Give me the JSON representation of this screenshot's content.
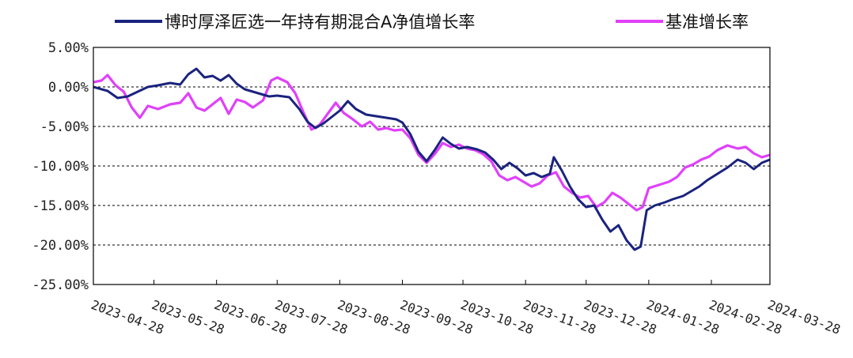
{
  "chart_data": {
    "type": "line",
    "title": "",
    "xlabel": "",
    "ylabel": "",
    "ylim": [
      -25,
      5
    ],
    "grid": "horizontal dashed",
    "legend_position": "top",
    "y_ticks": [
      "5.00%",
      "0.00%",
      "-5.00%",
      "-10.00%",
      "-15.00%",
      "-20.00%",
      "-25.00%"
    ],
    "y_tick_values": [
      5,
      0,
      -5,
      -10,
      -15,
      -20,
      -25
    ],
    "x_ticks": [
      "2023-04-28",
      "2023-05-28",
      "2023-06-28",
      "2023-07-28",
      "2023-08-28",
      "2023-09-28",
      "2023-10-28",
      "2023-11-28",
      "2023-12-28",
      "2024-01-28",
      "2024-02-28",
      "2024-03-28"
    ],
    "series": [
      {
        "name": "博时厚泽匠选一年持有期混合A净值增长率",
        "color": "#1a237e",
        "points": [
          [
            "2023-04-28",
            0.0
          ],
          [
            "2023-05-05",
            -0.5
          ],
          [
            "2023-05-10",
            -1.4
          ],
          [
            "2023-05-15",
            -1.2
          ],
          [
            "2023-05-20",
            -0.6
          ],
          [
            "2023-05-25",
            0.0
          ],
          [
            "2023-05-30",
            0.2
          ],
          [
            "2023-06-05",
            0.5
          ],
          [
            "2023-06-10",
            0.3
          ],
          [
            "2023-06-14",
            1.6
          ],
          [
            "2023-06-18",
            2.3
          ],
          [
            "2023-06-22",
            1.2
          ],
          [
            "2023-06-26",
            1.4
          ],
          [
            "2023-06-30",
            0.8
          ],
          [
            "2023-07-04",
            1.5
          ],
          [
            "2023-07-08",
            0.4
          ],
          [
            "2023-07-12",
            -0.3
          ],
          [
            "2023-07-16",
            -0.6
          ],
          [
            "2023-07-20",
            -0.9
          ],
          [
            "2023-07-24",
            -1.2
          ],
          [
            "2023-07-28",
            -1.1
          ],
          [
            "2023-08-03",
            -1.3
          ],
          [
            "2023-08-08",
            -2.8
          ],
          [
            "2023-08-12",
            -4.4
          ],
          [
            "2023-08-16",
            -5.2
          ],
          [
            "2023-08-20",
            -4.6
          ],
          [
            "2023-08-24",
            -3.8
          ],
          [
            "2023-08-28",
            -3.0
          ],
          [
            "2023-09-01",
            -1.8
          ],
          [
            "2023-09-05",
            -2.8
          ],
          [
            "2023-09-10",
            -3.5
          ],
          [
            "2023-09-15",
            -3.7
          ],
          [
            "2023-09-20",
            -3.9
          ],
          [
            "2023-09-25",
            -4.1
          ],
          [
            "2023-09-28",
            -4.5
          ],
          [
            "2023-10-02",
            -6.0
          ],
          [
            "2023-10-06",
            -8.2
          ],
          [
            "2023-10-10",
            -9.4
          ],
          [
            "2023-10-14",
            -8.0
          ],
          [
            "2023-10-18",
            -6.4
          ],
          [
            "2023-10-22",
            -7.2
          ],
          [
            "2023-10-26",
            -7.8
          ],
          [
            "2023-10-30",
            -7.6
          ],
          [
            "2023-11-04",
            -7.9
          ],
          [
            "2023-11-08",
            -8.3
          ],
          [
            "2023-11-12",
            -9.2
          ],
          [
            "2023-11-16",
            -10.4
          ],
          [
            "2023-11-20",
            -9.6
          ],
          [
            "2023-11-24",
            -10.3
          ],
          [
            "2023-11-28",
            -11.2
          ],
          [
            "2023-12-02",
            -10.9
          ],
          [
            "2023-12-06",
            -11.4
          ],
          [
            "2023-12-10",
            -11.0
          ],
          [
            "2023-12-12",
            -8.9
          ],
          [
            "2023-12-16",
            -10.6
          ],
          [
            "2023-12-20",
            -12.6
          ],
          [
            "2023-12-24",
            -14.2
          ],
          [
            "2023-12-28",
            -15.2
          ],
          [
            "2024-01-01",
            -15.0
          ],
          [
            "2024-01-05",
            -16.8
          ],
          [
            "2024-01-09",
            -18.3
          ],
          [
            "2024-01-13",
            -17.5
          ],
          [
            "2024-01-17",
            -19.4
          ],
          [
            "2024-01-21",
            -20.6
          ],
          [
            "2024-01-24",
            -20.2
          ],
          [
            "2024-01-27",
            -15.6
          ],
          [
            "2024-01-31",
            -15.0
          ],
          [
            "2024-02-05",
            -14.6
          ],
          [
            "2024-02-09",
            -14.2
          ],
          [
            "2024-02-14",
            -13.8
          ],
          [
            "2024-02-18",
            -13.2
          ],
          [
            "2024-02-22",
            -12.6
          ],
          [
            "2024-02-26",
            -11.8
          ],
          [
            "2024-03-02",
            -11.0
          ],
          [
            "2024-03-07",
            -10.2
          ],
          [
            "2024-03-12",
            -9.2
          ],
          [
            "2024-03-16",
            -9.6
          ],
          [
            "2024-03-20",
            -10.4
          ],
          [
            "2024-03-24",
            -9.6
          ],
          [
            "2024-03-28",
            -9.2
          ]
        ]
      },
      {
        "name": "基准增长率",
        "color": "#e040fb",
        "points": [
          [
            "2023-04-28",
            0.6
          ],
          [
            "2023-05-02",
            0.8
          ],
          [
            "2023-05-05",
            1.5
          ],
          [
            "2023-05-09",
            0.2
          ],
          [
            "2023-05-13",
            -0.6
          ],
          [
            "2023-05-17",
            -2.6
          ],
          [
            "2023-05-21",
            -3.9
          ],
          [
            "2023-05-25",
            -2.4
          ],
          [
            "2023-05-30",
            -2.8
          ],
          [
            "2023-06-05",
            -2.2
          ],
          [
            "2023-06-10",
            -2.0
          ],
          [
            "2023-06-14",
            -0.8
          ],
          [
            "2023-06-18",
            -2.6
          ],
          [
            "2023-06-22",
            -3.0
          ],
          [
            "2023-06-26",
            -2.2
          ],
          [
            "2023-06-30",
            -1.4
          ],
          [
            "2023-07-04",
            -3.4
          ],
          [
            "2023-07-08",
            -1.6
          ],
          [
            "2023-07-12",
            -1.9
          ],
          [
            "2023-07-16",
            -2.6
          ],
          [
            "2023-07-21",
            -1.7
          ],
          [
            "2023-07-25",
            0.8
          ],
          [
            "2023-07-28",
            1.2
          ],
          [
            "2023-08-02",
            0.6
          ],
          [
            "2023-08-06",
            -0.8
          ],
          [
            "2023-08-10",
            -3.2
          ],
          [
            "2023-08-14",
            -5.4
          ],
          [
            "2023-08-18",
            -4.8
          ],
          [
            "2023-08-22",
            -3.4
          ],
          [
            "2023-08-26",
            -2.0
          ],
          [
            "2023-08-30",
            -3.3
          ],
          [
            "2023-09-03",
            -4.0
          ],
          [
            "2023-09-08",
            -5.0
          ],
          [
            "2023-09-12",
            -4.4
          ],
          [
            "2023-09-16",
            -5.4
          ],
          [
            "2023-09-20",
            -5.2
          ],
          [
            "2023-09-24",
            -5.5
          ],
          [
            "2023-09-28",
            -5.4
          ],
          [
            "2023-10-02",
            -6.5
          ],
          [
            "2023-10-06",
            -8.6
          ],
          [
            "2023-10-10",
            -9.6
          ],
          [
            "2023-10-14",
            -8.5
          ],
          [
            "2023-10-18",
            -7.1
          ],
          [
            "2023-10-22",
            -7.6
          ],
          [
            "2023-10-26",
            -7.3
          ],
          [
            "2023-10-30",
            -7.8
          ],
          [
            "2023-11-03",
            -8.0
          ],
          [
            "2023-11-07",
            -8.5
          ],
          [
            "2023-11-11",
            -9.4
          ],
          [
            "2023-11-15",
            -11.2
          ],
          [
            "2023-11-19",
            -11.8
          ],
          [
            "2023-11-23",
            -11.4
          ],
          [
            "2023-11-27",
            -12.0
          ],
          [
            "2023-12-01",
            -12.6
          ],
          [
            "2023-12-05",
            -12.2
          ],
          [
            "2023-12-09",
            -11.2
          ],
          [
            "2023-12-13",
            -10.8
          ],
          [
            "2023-12-17",
            -12.6
          ],
          [
            "2023-12-21",
            -13.4
          ],
          [
            "2023-12-25",
            -14.0
          ],
          [
            "2023-12-29",
            -13.8
          ],
          [
            "2024-01-02",
            -15.2
          ],
          [
            "2024-01-06",
            -14.6
          ],
          [
            "2024-01-10",
            -13.4
          ],
          [
            "2024-01-14",
            -14.0
          ],
          [
            "2024-01-18",
            -14.8
          ],
          [
            "2024-01-22",
            -15.6
          ],
          [
            "2024-01-25",
            -15.2
          ],
          [
            "2024-01-28",
            -12.8
          ],
          [
            "2024-02-02",
            -12.4
          ],
          [
            "2024-02-07",
            -12.0
          ],
          [
            "2024-02-11",
            -11.4
          ],
          [
            "2024-02-15",
            -10.2
          ],
          [
            "2024-02-19",
            -9.8
          ],
          [
            "2024-02-23",
            -9.2
          ],
          [
            "2024-02-27",
            -8.8
          ],
          [
            "2024-03-02",
            -8.0
          ],
          [
            "2024-03-07",
            -7.4
          ],
          [
            "2024-03-12",
            -7.8
          ],
          [
            "2024-03-16",
            -7.6
          ],
          [
            "2024-03-20",
            -8.4
          ],
          [
            "2024-03-24",
            -8.9
          ],
          [
            "2024-03-28",
            -8.6
          ]
        ]
      }
    ]
  }
}
